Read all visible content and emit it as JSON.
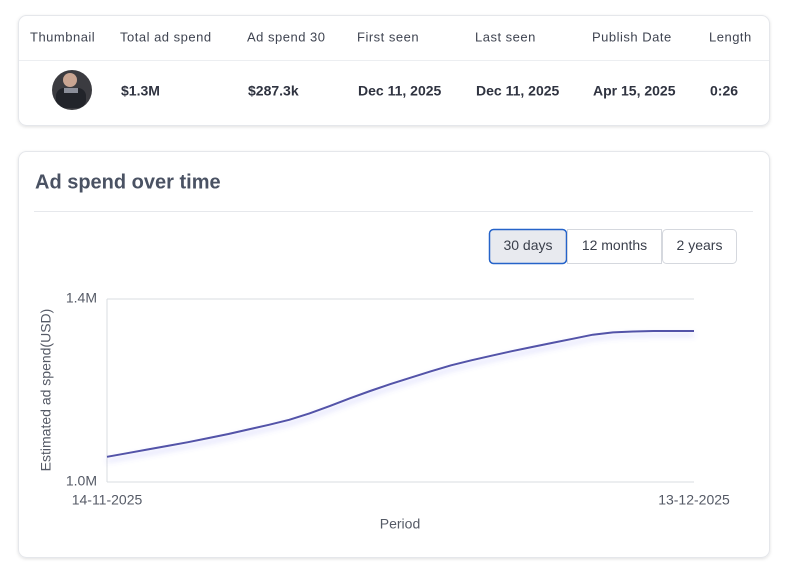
{
  "table": {
    "headers": [
      "Thumbnail",
      "Total ad spend",
      "Ad spend 30",
      "First seen",
      "Last seen",
      "Publish Date",
      "Length"
    ],
    "rows": [
      [
        "$1.3M",
        "$287.3k",
        "Dec 11, 2025",
        "Dec 11, 2025",
        "Apr 15, 2025",
        "0:26"
      ]
    ]
  },
  "buttons": [
    "30 days",
    "12 months",
    "2 years"
  ],
  "chart_data": {
    "type": "line",
    "title": "Ad spend over time",
    "x_label": "Period",
    "y_label": "Estimated ad spend(USD)",
    "categories": [
      "14-11-2025",
      null,
      null,
      null,
      null,
      null,
      null,
      null,
      null,
      null,
      null,
      null,
      null,
      null,
      null,
      null,
      null,
      null,
      null,
      null,
      null,
      null,
      null,
      null,
      null,
      null,
      null,
      null,
      null,
      "13-12-2025"
    ],
    "series": [
      {
        "name": "Ad spend",
        "color": "#5253a8",
        "values": [
          1055000,
          1063000,
          1071000,
          1079000,
          1087000,
          1096000,
          1105000,
          1115000,
          1125000,
          1136000,
          1150000,
          1166000,
          1183000,
          1199000,
          1214000,
          1228000,
          1242000,
          1255000,
          1266000,
          1276000,
          1286000,
          1295000,
          1304000,
          1313000,
          1322000,
          1327000,
          1329000,
          1330000,
          1330000,
          1330000
        ]
      }
    ],
    "ylim": [
      1000000,
      1400000
    ],
    "yticks": [
      {
        "value": 1000000,
        "label": "1.0M"
      },
      {
        "value": 1400000,
        "label": "1.4M"
      }
    ],
    "grid": true
  }
}
